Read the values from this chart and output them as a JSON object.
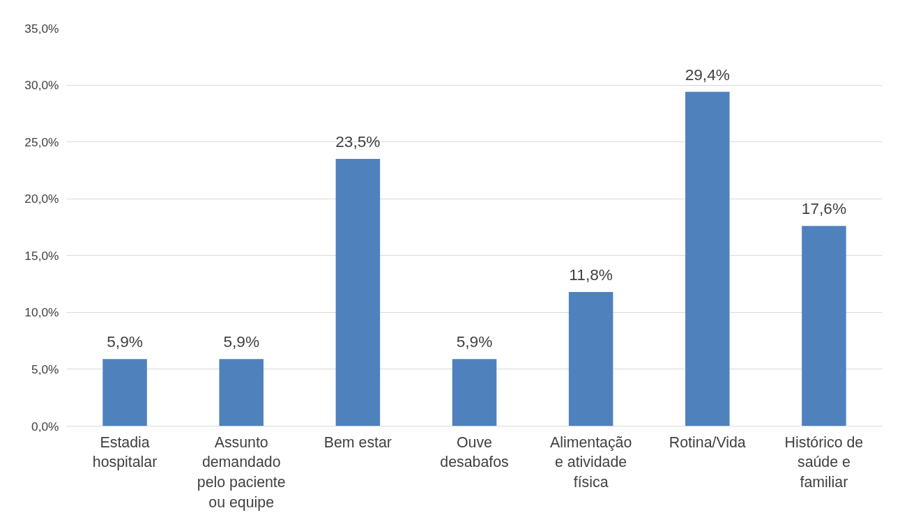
{
  "chart_data": {
    "type": "bar",
    "categories": [
      "Estadia\nhospitalar",
      "Assunto\ndemandado\npelo paciente\nou equipe",
      "Bem estar",
      "Ouve\ndesabafos",
      "Alimentação\ne atividade\nfísica",
      "Rotina/Vida",
      "Histórico de\nsaúde e\nfamiliar"
    ],
    "values": [
      5.9,
      5.9,
      23.5,
      5.9,
      11.8,
      29.4,
      17.6
    ],
    "color": "#4f81bd",
    "value_labels": [
      "5,9%",
      "5,9%",
      "23,5%",
      "5,9%",
      "11,8%",
      "29,4%",
      "17,6%"
    ],
    "ylim": [
      0,
      35
    ],
    "yticks": [
      {
        "value": 0,
        "label": "0,0%"
      },
      {
        "value": 5,
        "label": "5,0%"
      },
      {
        "value": 10,
        "label": "10,0%"
      },
      {
        "value": 15,
        "label": "15,0%"
      },
      {
        "value": 20,
        "label": "20,0%"
      },
      {
        "value": 25,
        "label": "25,0%"
      },
      {
        "value": 30,
        "label": "30,0%"
      },
      {
        "value": 35,
        "label": "35,0%"
      }
    ],
    "grid": "y"
  }
}
